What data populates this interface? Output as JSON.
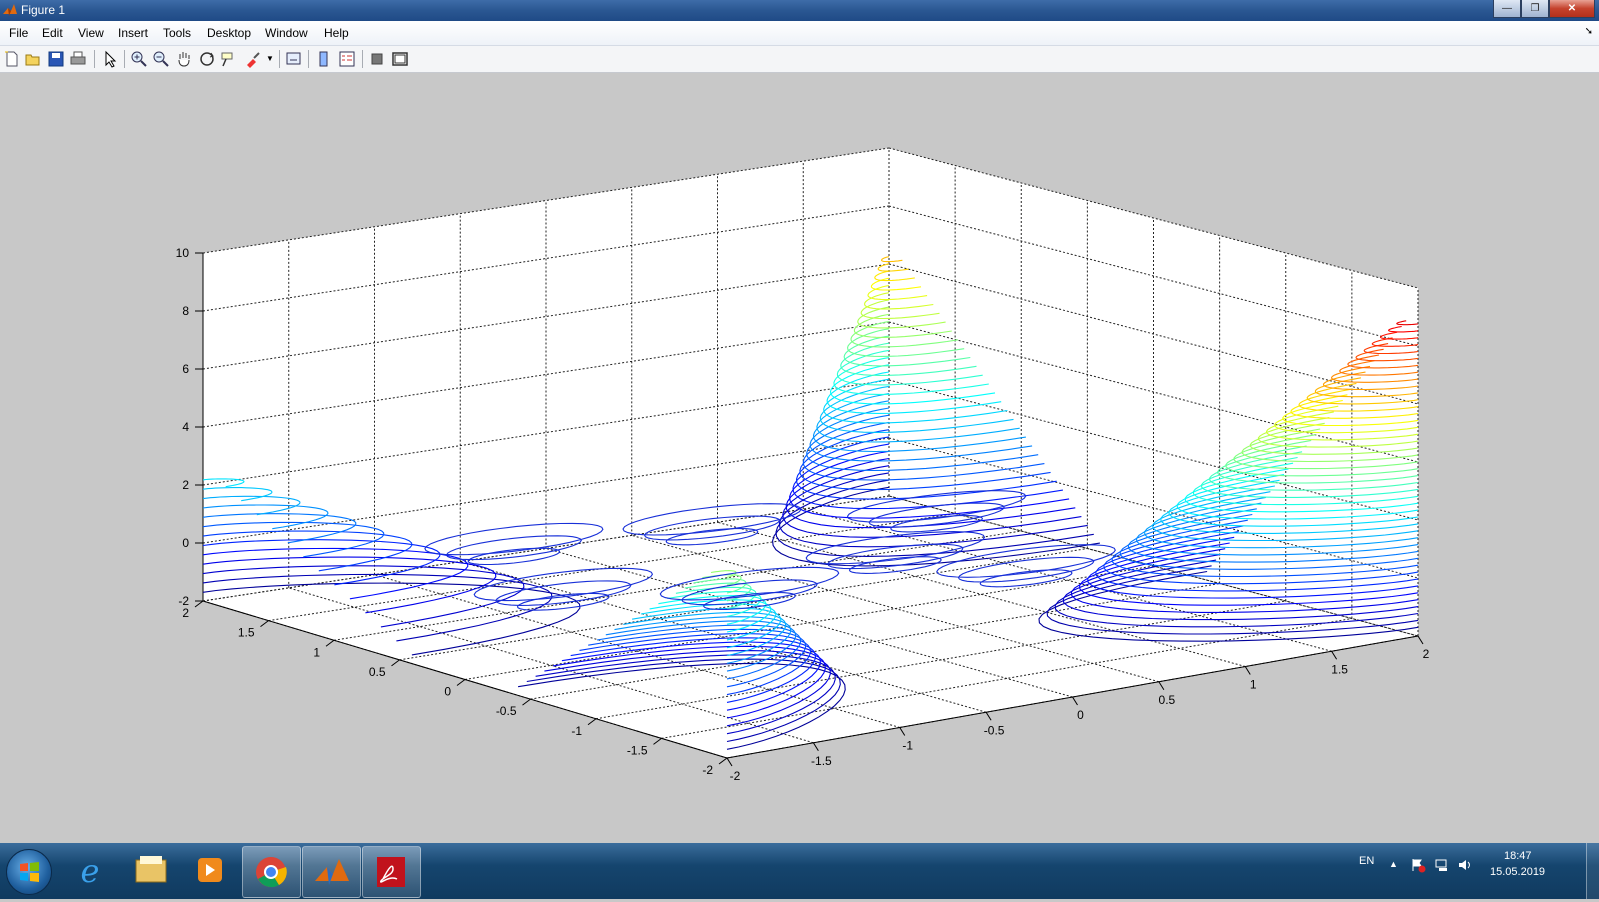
{
  "window": {
    "title": "Figure 1",
    "buttons": {
      "minimize": "—",
      "maximize": "❐",
      "close": "✕"
    }
  },
  "menu": [
    "File",
    "Edit",
    "View",
    "Insert",
    "Tools",
    "Desktop",
    "Window",
    "Help"
  ],
  "toolbar": {
    "icons": [
      "new-figure-icon",
      "open-file-icon",
      "save-icon",
      "print-icon",
      "select-arrow-icon",
      "zoom-in-icon",
      "zoom-out-icon",
      "pan-hand-icon",
      "rotate-3d-icon",
      "data-cursor-icon",
      "brush-icon",
      "link-plot-icon",
      "insert-colorbar-icon",
      "insert-legend-icon",
      "hide-plot-tools-icon",
      "show-plot-tools-icon"
    ]
  },
  "chart_data": {
    "type": "contour3",
    "title": "",
    "xlabel": "",
    "ylabel": "",
    "zlabel": "",
    "x_ticks": [
      "-2",
      "-1.5",
      "-1",
      "-0.5",
      "0",
      "0.5",
      "1",
      "1.5",
      "2"
    ],
    "y_ticks": [
      "-2",
      "-1.5",
      "-1",
      "-0.5",
      "0",
      "0.5",
      "1",
      "1.5",
      "2"
    ],
    "z_ticks": [
      "-2",
      "0",
      "2",
      "4",
      "6",
      "8",
      "10"
    ],
    "xlim": [
      -2,
      2
    ],
    "ylim": [
      -2,
      2
    ],
    "zlim": [
      -2,
      10
    ],
    "grid": true,
    "colormap": "jet",
    "peaks": [
      {
        "name": "",
        "x": -2,
        "y": 2,
        "height": 2.5,
        "color": "#33ccdd"
      },
      {
        "name": "",
        "x": -2,
        "y": -2,
        "height": 4.5,
        "color": "#dd1111"
      },
      {
        "name": "",
        "x": 2,
        "y": 2,
        "height": 6.5,
        "color": "#33ccdd"
      },
      {
        "name": "",
        "x": 2,
        "y": -2,
        "height": 9,
        "color": "#dd1111"
      }
    ]
  },
  "taskbar": {
    "apps": [
      "start-button",
      "internet-explorer-icon",
      "file-explorer-icon",
      "media-player-icon",
      "chrome-icon",
      "matlab-icon",
      "acrobat-icon"
    ],
    "language": "EN",
    "time": "18:47",
    "date": "15.05.2019"
  }
}
